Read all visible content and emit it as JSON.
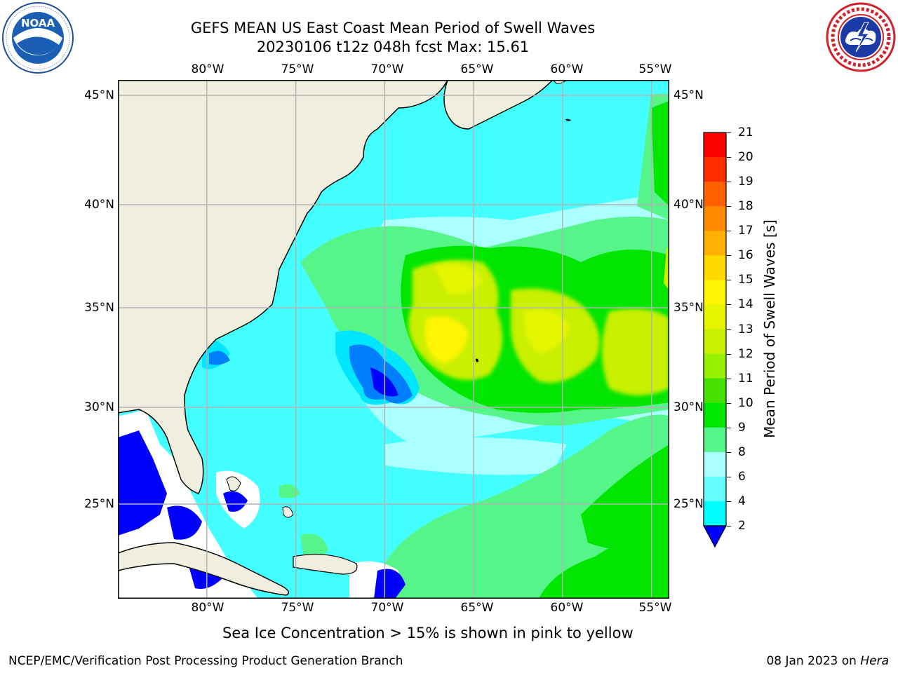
{
  "title": {
    "line1": "GEFS MEAN US East Coast Mean Period of Swell Waves",
    "line2": "20230106 t12z 048h fcst   Max: 15.61"
  },
  "logos": {
    "left": {
      "icon": "noaa-logo-icon",
      "text": "NOAA",
      "ring_text": "NATIONAL OCEANIC AND ATMOSPHERIC ADMINISTRATION · U.S. DEPARTMENT OF COMMERCE"
    },
    "right": {
      "icon": "nws-logo-icon",
      "ring_text": "NATIONAL WEATHER SERVICE"
    }
  },
  "map": {
    "longitude_ticks": [
      "80°W",
      "75°W",
      "70°W",
      "65°W",
      "60°W",
      "55°W"
    ],
    "latitude_ticks": [
      "45°N",
      "40°N",
      "35°N",
      "30°N",
      "25°N"
    ],
    "lon_range": [
      -85,
      -54
    ],
    "lat_range": [
      20.5,
      46
    ],
    "colors": {
      "land": "#efeedf",
      "coast": "#000000",
      "grid": "#b3b3b3",
      "no_data": "#ffffff"
    }
  },
  "colorbar": {
    "label": "Mean Period of Swell Waves [s]",
    "ticks": [
      "21",
      "20",
      "19",
      "18",
      "17",
      "16",
      "15",
      "14",
      "13",
      "12",
      "11",
      "10",
      "9",
      "8",
      "6",
      "4",
      "2"
    ],
    "colors": [
      "#ff0000",
      "#ff3000",
      "#ff6000",
      "#ff8a00",
      "#ffb000",
      "#ffd900",
      "#fff500",
      "#e6f500",
      "#c8f000",
      "#96f000",
      "#45e000",
      "#00e600",
      "#55f58a",
      "#aaffff",
      "#66ffff",
      "#00ffff",
      "#00e6ff",
      "#0080ff",
      "#0000ff"
    ]
  },
  "footer": {
    "note": "Sea Ice Concentration > 15% is shown in pink to yellow",
    "credit": "NCEP/EMC/Verification Post Processing Product Generation Branch",
    "date": "08 Jan 2023 on ",
    "host": "Hera"
  }
}
